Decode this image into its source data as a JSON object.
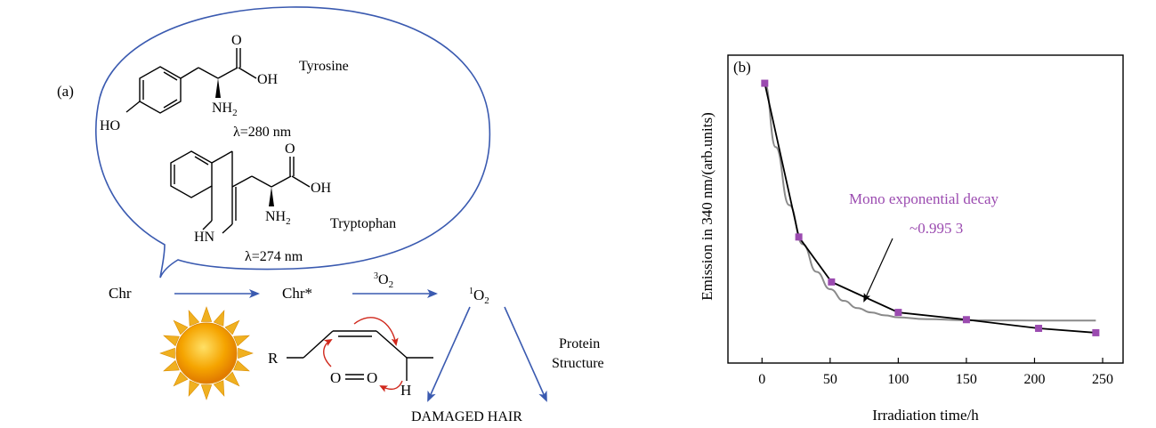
{
  "panel_a": {
    "label": "(a)",
    "tyrosine": {
      "name": "Tyrosine",
      "wavelength": "λ=280 nm",
      "oxygen": "O",
      "hydroxyl": "OH",
      "amine": "NH",
      "amine_sub": "2",
      "phenol": "HO"
    },
    "tryptophan": {
      "name": "Tryptophan",
      "wavelength": "λ=274 nm",
      "oxygen": "O",
      "hydroxyl": "OH",
      "amine": "NH",
      "amine_sub": "2",
      "ring_nh": "HN"
    },
    "reaction": {
      "chr": "Chr",
      "chr_star": "Chr*",
      "triplet_oxygen_sup": "3",
      "triplet_oxygen": "O",
      "triplet_oxygen_sub": "2",
      "singlet_oxygen_sup": "1",
      "singlet_oxygen": "O",
      "singlet_oxygen_sub": "2",
      "r_group": "R",
      "o_left": "O",
      "o_right": "O",
      "hydrogen": "H",
      "protein_line1": "Protein",
      "protein_line2": "Structure",
      "damaged": "DAMAGED HAIR"
    },
    "colors": {
      "bubble": "#3a5ab0",
      "arrow": "#3a5ab0",
      "red_arrow": "#d0281c",
      "sun_core": "#f5a400",
      "sun_ray": "#f0b020"
    }
  },
  "chart_data": {
    "type": "line",
    "panel_label": "(b)",
    "xlabel": "Irradiation time/h",
    "ylabel": "Emission in 340 nm/(arb.units)",
    "xlim": [
      -25,
      265
    ],
    "xticks": [
      0,
      50,
      100,
      150,
      200,
      250
    ],
    "xtick_labels": [
      "0",
      "50",
      "100",
      "150",
      "200",
      "250"
    ],
    "ylim": [
      0,
      1
    ],
    "y_tick_labels": "none",
    "grid": false,
    "series": [
      {
        "role": "measured",
        "marker": "square",
        "color": "#000000",
        "marker_color": "#9b4bb0",
        "x": [
          2,
          27,
          51,
          100,
          150,
          203,
          245
        ],
        "y": [
          0.94,
          0.41,
          0.255,
          0.15,
          0.125,
          0.095,
          0.08
        ]
      },
      {
        "role": "fit",
        "color": "#8a8a8a",
        "curve": "mono-exponential",
        "x": [
          2,
          10,
          20,
          30,
          40,
          50,
          60,
          70,
          80,
          90,
          100,
          120,
          150,
          200,
          245
        ],
        "y": [
          0.94,
          0.72,
          0.52,
          0.385,
          0.29,
          0.23,
          0.19,
          0.165,
          0.15,
          0.14,
          0.133,
          0.127,
          0.123,
          0.122,
          0.122
        ]
      }
    ],
    "annotation": {
      "line1": "Mono exponential decay",
      "line2": "~0.995 3",
      "color": "#9b4bb0",
      "arrow_target_x": 75,
      "arrow_target_y": 0.19
    }
  }
}
